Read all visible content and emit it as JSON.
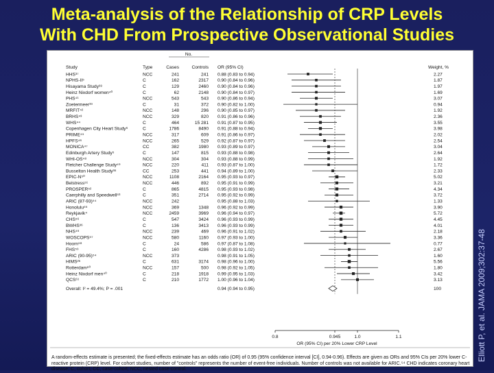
{
  "slide": {
    "title_line1": "Meta-analysis of the Relationship of CRP Levels",
    "title_line2": "With CHD From Prospective Observational Studies",
    "citation": "Elliott P, et al. JAMA 2009;302:37-48"
  },
  "colors": {
    "background": "#1a1f5e",
    "title": "#ffff33",
    "marker": "#222222"
  },
  "chart_data": {
    "type": "forest",
    "headers": {
      "study": "Study",
      "type": "Type",
      "no_group": "No.",
      "cases": "Cases",
      "controls": "Controls",
      "or": "OR (95% CI)",
      "weight": "Weight, %"
    },
    "rows": [
      {
        "study": "HHS³⁷",
        "type": "NCC",
        "cases": "241",
        "controls": "241",
        "or": 0.88,
        "lo": 0.83,
        "hi": 0.94,
        "or_text": "0.88 (0.83 to 0.94)",
        "weight": "2.27"
      },
      {
        "study": "NPHS-II⁵",
        "type": "C",
        "cases": "162",
        "controls": "2317",
        "or": 0.9,
        "lo": 0.84,
        "hi": 0.96,
        "or_text": "0.90 (0.84 to 0.96)",
        "weight": "1.87"
      },
      {
        "study": "Hisayama Study³⁸",
        "type": "C",
        "cases": "129",
        "controls": "2460",
        "or": 0.9,
        "lo": 0.84,
        "hi": 0.96,
        "or_text": "0.90 (0.84 to 0.96)",
        "weight": "1.97"
      },
      {
        "study": "Heinz Nixdorf women⁴⁰",
        "type": "C",
        "cases": "62",
        "controls": "2148",
        "or": 0.9,
        "lo": 0.84,
        "hi": 0.97,
        "or_text": "0.90 (0.84 to 0.97)",
        "weight": "1.69"
      },
      {
        "study": "PHS⁴¹",
        "type": "NCC",
        "cases": "543",
        "controls": "543",
        "or": 0.9,
        "lo": 0.86,
        "hi": 0.94,
        "or_text": "0.90 (0.86 to 0.94)",
        "weight": "3.07"
      },
      {
        "study": "Zoetermeer³⁹",
        "type": "C",
        "cases": "31",
        "controls": "372",
        "or": 0.9,
        "lo": 0.82,
        "hi": 1.0,
        "or_text": "0.90 (0.82 to 1.00)",
        "weight": "0.94"
      },
      {
        "study": "MRFIT⁴²",
        "type": "NCC",
        "cases": "148",
        "controls": "296",
        "or": 0.9,
        "lo": 0.85,
        "hi": 0.97,
        "or_text": "0.90 (0.85 to 0.97)",
        "weight": "1.92"
      },
      {
        "study": "BRHS⁴³",
        "type": "NCC",
        "cases": "329",
        "controls": "820",
        "or": 0.91,
        "lo": 0.86,
        "hi": 0.96,
        "or_text": "0.91 (0.86 to 0.96)",
        "weight": "2.36"
      },
      {
        "study": "WHS⁴⁴",
        "type": "C",
        "cases": "464",
        "controls": "15 281",
        "or": 0.91,
        "lo": 0.87,
        "hi": 0.95,
        "or_text": "0.91 (0.87 to 0.95)",
        "weight": "3.55"
      },
      {
        "study": "Copenhagen City Heart Study⁶",
        "type": "C",
        "cases": "1786",
        "controls": "8490",
        "or": 0.91,
        "lo": 0.88,
        "hi": 0.94,
        "or_text": "0.91 (0.88 to 0.94)",
        "weight": "3.98"
      },
      {
        "study": "PRIME⁴⁵",
        "type": "NCC",
        "cases": "317",
        "controls": "609",
        "or": 0.91,
        "lo": 0.86,
        "hi": 0.97,
        "or_text": "0.91 (0.86 to 0.97)",
        "weight": "2.02"
      },
      {
        "study": "HPFS⁴⁶",
        "type": "NCC",
        "cases": "265",
        "controls": "529",
        "or": 0.92,
        "lo": 0.87,
        "hi": 0.97,
        "or_text": "0.92 (0.87 to 0.97)",
        "weight": "2.54"
      },
      {
        "study": "MONICA⁴⁷",
        "type": "CC",
        "cases": "382",
        "controls": "1980",
        "or": 0.93,
        "lo": 0.89,
        "hi": 0.97,
        "or_text": "0.93 (0.89 to 0.97)",
        "weight": "3.04"
      },
      {
        "study": "Edinburgh Artery Study⁵",
        "type": "C",
        "cases": "147",
        "controls": "815",
        "or": 0.93,
        "lo": 0.88,
        "hi": 0.98,
        "or_text": "0.93 (0.88 to 0.98)",
        "weight": "2.64"
      },
      {
        "study": "WHI-OS⁴⁸",
        "type": "NCC",
        "cases": "304",
        "controls": "304",
        "or": 0.93,
        "lo": 0.88,
        "hi": 0.99,
        "or_text": "0.93 (0.88 to 0.99)",
        "weight": "1.92"
      },
      {
        "study": "Fletcher Challenge Study⁴⁹",
        "type": "NCC",
        "cases": "220",
        "controls": "411",
        "or": 0.93,
        "lo": 0.87,
        "hi": 1.0,
        "or_text": "0.93 (0.87 to 1.00)",
        "weight": "1.72"
      },
      {
        "study": "Busselton Health Study³⁶",
        "type": "CC",
        "cases": "253",
        "controls": "441",
        "or": 0.94,
        "lo": 0.89,
        "hi": 1.0,
        "or_text": "0.94 (0.89 to 1.00)",
        "weight": "2.33"
      },
      {
        "study": "EPIC-N⁵⁰",
        "type": "NCC",
        "cases": "1108",
        "controls": "2164",
        "or": 0.95,
        "lo": 0.93,
        "hi": 0.97,
        "or_text": "0.95 (0.93 to 0.97)",
        "weight": "5.02"
      },
      {
        "study": "Belstress⁵¹",
        "type": "NCC",
        "cases": "446",
        "controls": "892",
        "or": 0.95,
        "lo": 0.91,
        "hi": 0.99,
        "or_text": "0.95 (0.91 to 0.99)",
        "weight": "3.21"
      },
      {
        "study": "PROSPER⁵²",
        "type": "C",
        "cases": "865",
        "controls": "4815",
        "or": 0.95,
        "lo": 0.93,
        "hi": 0.98,
        "or_text": "0.95 (0.93 to 0.98)",
        "weight": "4.34"
      },
      {
        "study": "Caerphilly and Speedwell⁵³",
        "type": "C",
        "cases": "351",
        "controls": "2714",
        "or": 0.95,
        "lo": 0.92,
        "hi": 0.99,
        "or_text": "0.95 (0.92 to 0.99)",
        "weight": "3.72"
      },
      {
        "study": "ARIC (87-93)⁵⁴",
        "type": "NCC",
        "cases": "242",
        "controls": "",
        "or": 0.95,
        "lo": 0.88,
        "hi": 1.03,
        "or_text": "0.95 (0.88 to 1.03)",
        "weight": "1.33"
      },
      {
        "study": "Honolulu⁵⁵",
        "type": "NCC",
        "cases": "369",
        "controls": "1348",
        "or": 0.96,
        "lo": 0.92,
        "hi": 0.99,
        "or_text": "0.96 (0.92 to 0.99)",
        "weight": "3.90"
      },
      {
        "study": "Reykjavik⁴",
        "type": "NCC",
        "cases": "2459",
        "controls": "3969",
        "or": 0.96,
        "lo": 0.94,
        "hi": 0.97,
        "or_text": "0.96 (0.94 to 0.97)",
        "weight": "5.72"
      },
      {
        "study": "CHS⁵⁶",
        "type": "C",
        "cases": "547",
        "controls": "3424",
        "or": 0.96,
        "lo": 0.93,
        "hi": 0.99,
        "or_text": "0.96 (0.93 to 0.99)",
        "weight": "4.45"
      },
      {
        "study": "BWHS³⁶",
        "type": "C",
        "cases": "136",
        "controls": "3413",
        "or": 0.96,
        "lo": 0.93,
        "hi": 0.99,
        "or_text": "0.96 (0.93 to 0.99)",
        "weight": "4.01"
      },
      {
        "study": "NHS⁴⁶",
        "type": "NCC",
        "cases": "239",
        "controls": "469",
        "or": 0.96,
        "lo": 0.91,
        "hi": 1.02,
        "or_text": "0.96 (0.91 to 1.02)",
        "weight": "2.18"
      },
      {
        "study": "WOSCOPS⁵⁷",
        "type": "NCC",
        "cases": "580",
        "controls": "1160",
        "or": 0.97,
        "lo": 0.93,
        "hi": 1.0,
        "or_text": "0.97 (0.93 to 1.00)",
        "weight": "3.36"
      },
      {
        "study": "Hoorn⁵⁸",
        "type": "C",
        "cases": "24",
        "controls": "586",
        "or": 0.97,
        "lo": 0.87,
        "hi": 1.08,
        "or_text": "0.97 (0.87 to 1.08)",
        "weight": "0.77"
      },
      {
        "study": "FHS⁵⁹",
        "type": "C",
        "cases": "160",
        "controls": "4286",
        "or": 0.98,
        "lo": 0.93,
        "hi": 1.02,
        "or_text": "0.98 (0.93 to 1.02)",
        "weight": "2.67"
      },
      {
        "study": "ARIC (90-95)⁵⁴",
        "type": "NCC",
        "cases": "373",
        "controls": "",
        "or": 0.98,
        "lo": 0.91,
        "hi": 1.05,
        "or_text": "0.98 (0.91 to 1.05)",
        "weight": "1.60"
      },
      {
        "study": "HIMS²⁶",
        "type": "C",
        "cases": "631",
        "controls": "3174",
        "or": 0.98,
        "lo": 0.96,
        "hi": 1.0,
        "or_text": "0.98 (0.96 to 1.00)",
        "weight": "5.56"
      },
      {
        "study": "Rotterdam⁶⁰",
        "type": "NCC",
        "cases": "157",
        "controls": "500",
        "or": 0.98,
        "lo": 0.92,
        "hi": 1.05,
        "or_text": "0.98 (0.92 to 1.05)",
        "weight": "1.80"
      },
      {
        "study": "Heinz Nixdorf men⁴⁰",
        "type": "C",
        "cases": "218",
        "controls": "1918",
        "or": 0.99,
        "lo": 0.95,
        "hi": 1.03,
        "or_text": "0.99 (0.95 to 1.03)",
        "weight": "3.42"
      },
      {
        "study": "QCS⁶¹",
        "type": "C",
        "cases": "210",
        "controls": "1772",
        "or": 1.0,
        "lo": 0.96,
        "hi": 1.04,
        "or_text": "1.00 (0.96 to 1.04)",
        "weight": "3.13"
      }
    ],
    "overall": {
      "label": "Overall: I² = 49.4%; P = .001",
      "or": 0.94,
      "lo": 0.94,
      "hi": 0.95,
      "or_text": "0.94 (0.94 to 0.95)",
      "weight": "100"
    },
    "x_axis": {
      "ticks": [
        0.8,
        0.945,
        1.0,
        1.1
      ],
      "tick_labels": [
        "0.8",
        "0.945",
        "1.0",
        "1.1"
      ],
      "xlim": [
        0.8,
        1.1
      ],
      "label": "OR (95% CI) per 20% Lower CRP Level",
      "reference": 0.945,
      "null": 1.0
    },
    "footnote": "A random-effects estimate is presented; the fixed-effects estimate has an odds ratio (OR) of 0.95 (95% confidence interval [CI], 0.94-0.96). Effects are given as ORs and 95% CIs per 20% lower C-reactive protein (CRP) level. For cohort studies, number of \"controls\" represents the number of event-free individuals. Number of controls was not available for ARIC.⁵⁴ CHD indicates coronary heart disease; C, cohort; CC, case-cohort; NCC, nested case-control."
  }
}
